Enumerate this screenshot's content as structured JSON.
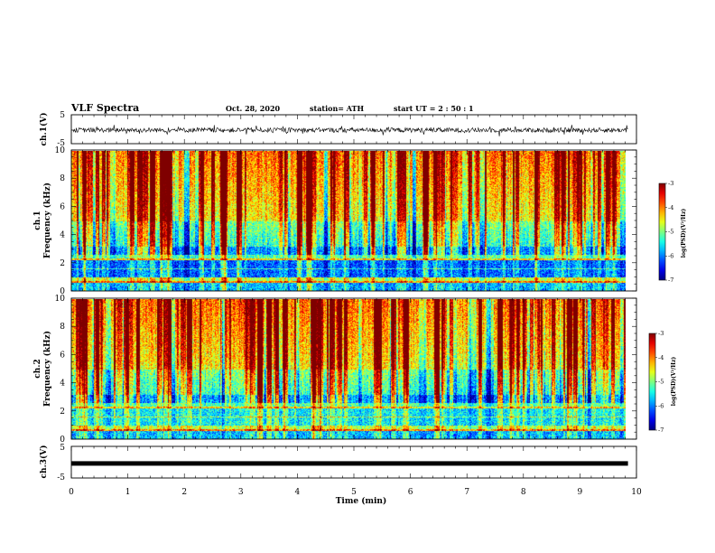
{
  "header": {
    "title": "VLF Spectra",
    "date": "Oct. 28, 2020",
    "station": "station= ATH",
    "start": "start UT =  2 : 50 : 1"
  },
  "chart_data": [
    {
      "type": "line",
      "panel": "ch1-waveform",
      "ylabel": "ch.1(V)",
      "ylim": [
        -5,
        5
      ],
      "y_ticks": [
        "5",
        "-5"
      ],
      "xlim": [
        0,
        10
      ],
      "description_values": {
        "mean_v": -0.3,
        "typical_range_v": [
          -1.5,
          1.0
        ],
        "data_end_min": 9.85
      }
    },
    {
      "type": "heatmap",
      "panel": "ch1-spectrogram",
      "ylabel_line1": "ch.1",
      "ylabel_line2": "Frequency (kHz)",
      "ylim": [
        0,
        10
      ],
      "y_ticks": [
        "0",
        "2",
        "4",
        "6",
        "8",
        "10"
      ],
      "xlim": [
        0,
        10
      ],
      "colorbar": {
        "label": "log(PSD)(V²/Hz)",
        "range": [
          -7,
          -3
        ],
        "ticks": [
          "-3",
          "-4",
          "-5",
          "-6",
          "-7"
        ]
      }
    },
    {
      "type": "heatmap",
      "panel": "ch2-spectrogram",
      "ylabel_line1": "ch.2",
      "ylabel_line2": "Frequency (kHz)",
      "ylim": [
        0,
        10
      ],
      "y_ticks": [
        "0",
        "2",
        "4",
        "6",
        "8",
        "10"
      ],
      "xlim": [
        0,
        10
      ],
      "colorbar": {
        "label": "log(PSD)(V²/Hz)",
        "range": [
          -7,
          -3
        ],
        "ticks": [
          "-3",
          "-4",
          "-5",
          "-6",
          "-7"
        ]
      }
    },
    {
      "type": "line",
      "panel": "ch3-waveform",
      "ylabel": "ch.3(V)",
      "ylim": [
        -5,
        5
      ],
      "y_ticks": [
        "5",
        "-5"
      ],
      "xlim": [
        0,
        10
      ],
      "description_values": {
        "mean_v": -0.4,
        "data_end_min": 9.85
      }
    }
  ],
  "x_axis": {
    "label": "Time (min)",
    "ticks": [
      "0",
      "1",
      "2",
      "3",
      "4",
      "5",
      "6",
      "7",
      "8",
      "9",
      "10"
    ]
  }
}
